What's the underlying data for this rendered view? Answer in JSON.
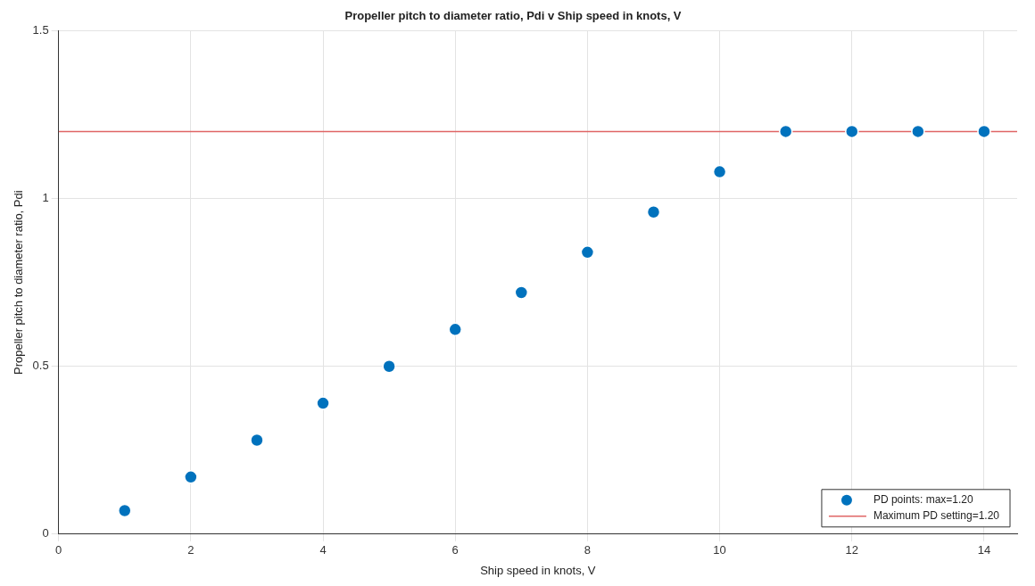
{
  "chart_data": {
    "type": "scatter",
    "title": "Propeller pitch to diameter ratio, Pdi v Ship speed in knots, V",
    "xlabel": "Ship speed in knots, V",
    "ylabel": "Propeller pitch to diameter ratio, Pdi",
    "x": [
      1,
      2,
      3,
      4,
      5,
      6,
      7,
      8,
      9,
      10,
      11,
      12,
      13,
      14
    ],
    "series": [
      {
        "name": "PD points: max=1.20",
        "color": "#0072bd",
        "values": [
          0.07,
          0.17,
          0.28,
          0.39,
          0.5,
          0.61,
          0.72,
          0.84,
          0.96,
          1.08,
          1.2,
          1.2,
          1.2,
          1.2
        ]
      }
    ],
    "ref_lines": [
      {
        "axis": "y",
        "value": 1.2,
        "label": "Maximum PD setting=1.20",
        "color": "#e06666"
      }
    ],
    "xlim": [
      0,
      14.5
    ],
    "xticks": [
      0,
      2,
      4,
      6,
      8,
      10,
      12,
      14
    ],
    "ylim": [
      0,
      1.5
    ],
    "yticks": [
      0,
      0.5,
      1,
      1.5
    ],
    "grid": true,
    "legend": "bottom right",
    "marker": "circle"
  }
}
